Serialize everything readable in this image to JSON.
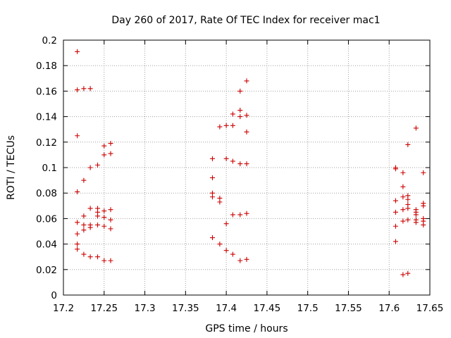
{
  "chart_data": {
    "type": "scatter",
    "title": "Day 260 of 2017, Rate Of TEC Index for receiver mac1",
    "xlabel": "GPS time / hours",
    "ylabel": "ROTI / TECUs",
    "xlim": [
      17.2,
      17.65
    ],
    "ylim": [
      0,
      0.2
    ],
    "xticks": [
      "17.2",
      "17.25",
      "17.3",
      "17.35",
      "17.4",
      "17.45",
      "17.5",
      "17.55",
      "17.6",
      "17.65"
    ],
    "yticks": [
      "0",
      "0.02",
      "0.04",
      "0.06",
      "0.08",
      "0.1",
      "0.12",
      "0.14",
      "0.16",
      "0.18",
      "0.2"
    ],
    "grid": true,
    "marker": "+",
    "color": "#cc0000",
    "series": [
      {
        "name": "ROTI",
        "points": [
          [
            17.217,
            0.191
          ],
          [
            17.217,
            0.161
          ],
          [
            17.217,
            0.125
          ],
          [
            17.217,
            0.081
          ],
          [
            17.217,
            0.057
          ],
          [
            17.217,
            0.048
          ],
          [
            17.217,
            0.04
          ],
          [
            17.217,
            0.036
          ],
          [
            17.225,
            0.162
          ],
          [
            17.225,
            0.09
          ],
          [
            17.225,
            0.062
          ],
          [
            17.225,
            0.055
          ],
          [
            17.225,
            0.051
          ],
          [
            17.225,
            0.032
          ],
          [
            17.233,
            0.162
          ],
          [
            17.233,
            0.1
          ],
          [
            17.233,
            0.068
          ],
          [
            17.233,
            0.055
          ],
          [
            17.233,
            0.053
          ],
          [
            17.233,
            0.03
          ],
          [
            17.242,
            0.102
          ],
          [
            17.242,
            0.068
          ],
          [
            17.242,
            0.065
          ],
          [
            17.242,
            0.062
          ],
          [
            17.242,
            0.055
          ],
          [
            17.242,
            0.03
          ],
          [
            17.25,
            0.117
          ],
          [
            17.25,
            0.11
          ],
          [
            17.25,
            0.066
          ],
          [
            17.25,
            0.061
          ],
          [
            17.25,
            0.054
          ],
          [
            17.25,
            0.027
          ],
          [
            17.258,
            0.119
          ],
          [
            17.258,
            0.111
          ],
          [
            17.258,
            0.067
          ],
          [
            17.258,
            0.059
          ],
          [
            17.258,
            0.052
          ],
          [
            17.258,
            0.027
          ],
          [
            17.383,
            0.107
          ],
          [
            17.383,
            0.092
          ],
          [
            17.383,
            0.08
          ],
          [
            17.383,
            0.077
          ],
          [
            17.383,
            0.045
          ],
          [
            17.392,
            0.132
          ],
          [
            17.392,
            0.076
          ],
          [
            17.392,
            0.073
          ],
          [
            17.392,
            0.04
          ],
          [
            17.4,
            0.133
          ],
          [
            17.4,
            0.107
          ],
          [
            17.4,
            0.056
          ],
          [
            17.4,
            0.035
          ],
          [
            17.408,
            0.142
          ],
          [
            17.408,
            0.133
          ],
          [
            17.408,
            0.105
          ],
          [
            17.408,
            0.063
          ],
          [
            17.408,
            0.032
          ],
          [
            17.417,
            0.16
          ],
          [
            17.417,
            0.145
          ],
          [
            17.417,
            0.14
          ],
          [
            17.417,
            0.103
          ],
          [
            17.417,
            0.063
          ],
          [
            17.417,
            0.027
          ],
          [
            17.425,
            0.168
          ],
          [
            17.425,
            0.141
          ],
          [
            17.425,
            0.128
          ],
          [
            17.425,
            0.103
          ],
          [
            17.425,
            0.064
          ],
          [
            17.425,
            0.028
          ],
          [
            17.608,
            0.1
          ],
          [
            17.608,
            0.099
          ],
          [
            17.608,
            0.074
          ],
          [
            17.608,
            0.065
          ],
          [
            17.608,
            0.054
          ],
          [
            17.608,
            0.042
          ],
          [
            17.617,
            0.096
          ],
          [
            17.617,
            0.085
          ],
          [
            17.617,
            0.077
          ],
          [
            17.617,
            0.067
          ],
          [
            17.617,
            0.058
          ],
          [
            17.617,
            0.016
          ],
          [
            17.623,
            0.118
          ],
          [
            17.623,
            0.078
          ],
          [
            17.623,
            0.075
          ],
          [
            17.623,
            0.071
          ],
          [
            17.623,
            0.068
          ],
          [
            17.623,
            0.059
          ],
          [
            17.623,
            0.017
          ],
          [
            17.633,
            0.131
          ],
          [
            17.633,
            0.067
          ],
          [
            17.633,
            0.065
          ],
          [
            17.633,
            0.063
          ],
          [
            17.633,
            0.059
          ],
          [
            17.633,
            0.057
          ],
          [
            17.642,
            0.096
          ],
          [
            17.642,
            0.072
          ],
          [
            17.642,
            0.07
          ],
          [
            17.642,
            0.06
          ],
          [
            17.642,
            0.058
          ],
          [
            17.642,
            0.055
          ]
        ]
      }
    ]
  }
}
